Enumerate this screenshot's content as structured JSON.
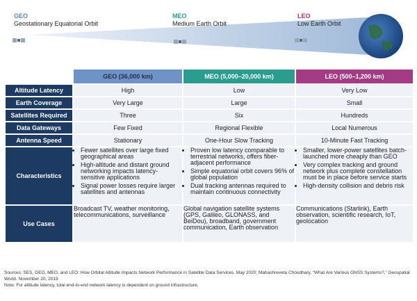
{
  "orbits": {
    "geo": {
      "abbr": "GEO",
      "name": "Geostationary Equatorial Orbit"
    },
    "meo": {
      "abbr": "MEO",
      "name": "Medium Earth Orbit"
    },
    "leo": {
      "abbr": "LEO",
      "name": "Low Earth Orbit"
    }
  },
  "colors": {
    "geo": "#6f93c6",
    "meo": "#2a9d8f",
    "leo": "#a43b85",
    "rowhead": "#1d3a63",
    "cell": "#eef1f6"
  },
  "columns": [
    "GEO (36,000 km)",
    "MEO (5,000–20,000 km)",
    "LEO (500–1,200 km)"
  ],
  "rows": [
    {
      "label": "Altitude Latency",
      "values": [
        "High",
        "Low",
        "Very Low"
      ]
    },
    {
      "label": "Earth Coverage",
      "values": [
        "Very Large",
        "Large",
        "Small"
      ]
    },
    {
      "label": "Satellites Required",
      "values": [
        "Three",
        "Six",
        "Hundreds"
      ]
    },
    {
      "label": "Data Gateways",
      "values": [
        "Few Fixed",
        "Regional Flexible",
        "Local Numerous"
      ]
    },
    {
      "label": "Antenna Speed",
      "values": [
        "Stationary",
        "One-Hour Slow Tracking",
        "10-Minute Fast Tracking"
      ]
    }
  ],
  "characteristics": {
    "label": "Characteristics",
    "geo": [
      "Fewer satellites over large fixed geographical areas",
      "High-altitude and distant ground networking impacts latency-sensitive applications",
      "Signal power losses require larger satellites and antennas"
    ],
    "meo": [
      "Proven low latency comparable to terrestrial networks, offers fiber-adjacent performance",
      "Simple equatorial orbit covers 96% of global population",
      "Dual tracking antennas required to maintain continuous connectivity"
    ],
    "leo": [
      "Smaller, lower-power satellites batch-launched more cheaply than GEO",
      "Very complex tracking and ground network plus complete constellation must be in place before service starts",
      "High-density collision and debris risk"
    ]
  },
  "use_cases": {
    "label": "Use Cases",
    "geo": "Broadcast TV, weather monitoring, telecommunications, surveillance",
    "meo": "Global navigation satellite systems (GPS, Galileo, GLONASS, and BeiDou), broadband, government communication, Earth observation",
    "leo": "Communications (Starlink), Earth observation, scientific research, IoT, geolocation"
  },
  "footer": {
    "sources": "Sources: SES, GEO, MEO, and LEO: How Orbital Altitude Impacts Network Performance in Satellite Data Services. May 2020; Mahashreveta Choudhary, “What Are Various GNSS Systems?,” Geospatial World. November 20, 2019",
    "note": "Note: For altitude latency, total end-to-end network latency is dependent on ground infrastructure."
  }
}
